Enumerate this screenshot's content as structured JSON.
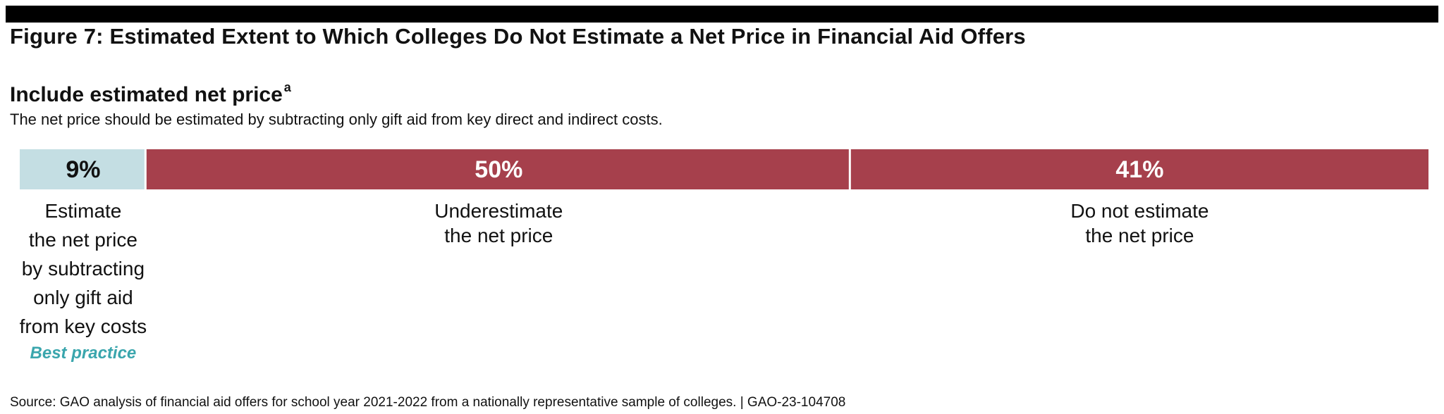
{
  "figure_title": "Figure 7: Estimated Extent to Which Colleges Do Not Estimate a Net Price in Financial Aid Offers",
  "section": {
    "heading": "Include estimated net price",
    "footnote_mark": "a",
    "subtitle": "The net price should be estimated by subtracting only gift aid from key direct and indirect costs."
  },
  "chart_data": {
    "type": "bar",
    "orientation": "horizontal-stacked",
    "categories": [
      "Estimate the net price by subtracting only gift aid from key costs",
      "Underestimate the net price",
      "Do not estimate the net price"
    ],
    "values": [
      9,
      50,
      41
    ],
    "value_labels": [
      "9%",
      "50%",
      "41%"
    ],
    "category_lines": [
      [
        "Estimate",
        "the net price",
        "by subtracting",
        "only gift aid",
        "from key costs"
      ],
      [
        "Underestimate",
        "the net price"
      ],
      [
        "Do not estimate",
        "the net price"
      ]
    ],
    "colors": [
      "#c4dee3",
      "#a6404c",
      "#a6404c"
    ],
    "label_colors": [
      "#111111",
      "#ffffff",
      "#ffffff"
    ],
    "annotation": {
      "text": "Best practice",
      "color": "#3aa6ad",
      "segment": 0
    },
    "unit": "%"
  },
  "source": "Source: GAO analysis of financial aid offers for school year 2021-2022 from a nationally representative sample of colleges.  |  GAO-23-104708"
}
